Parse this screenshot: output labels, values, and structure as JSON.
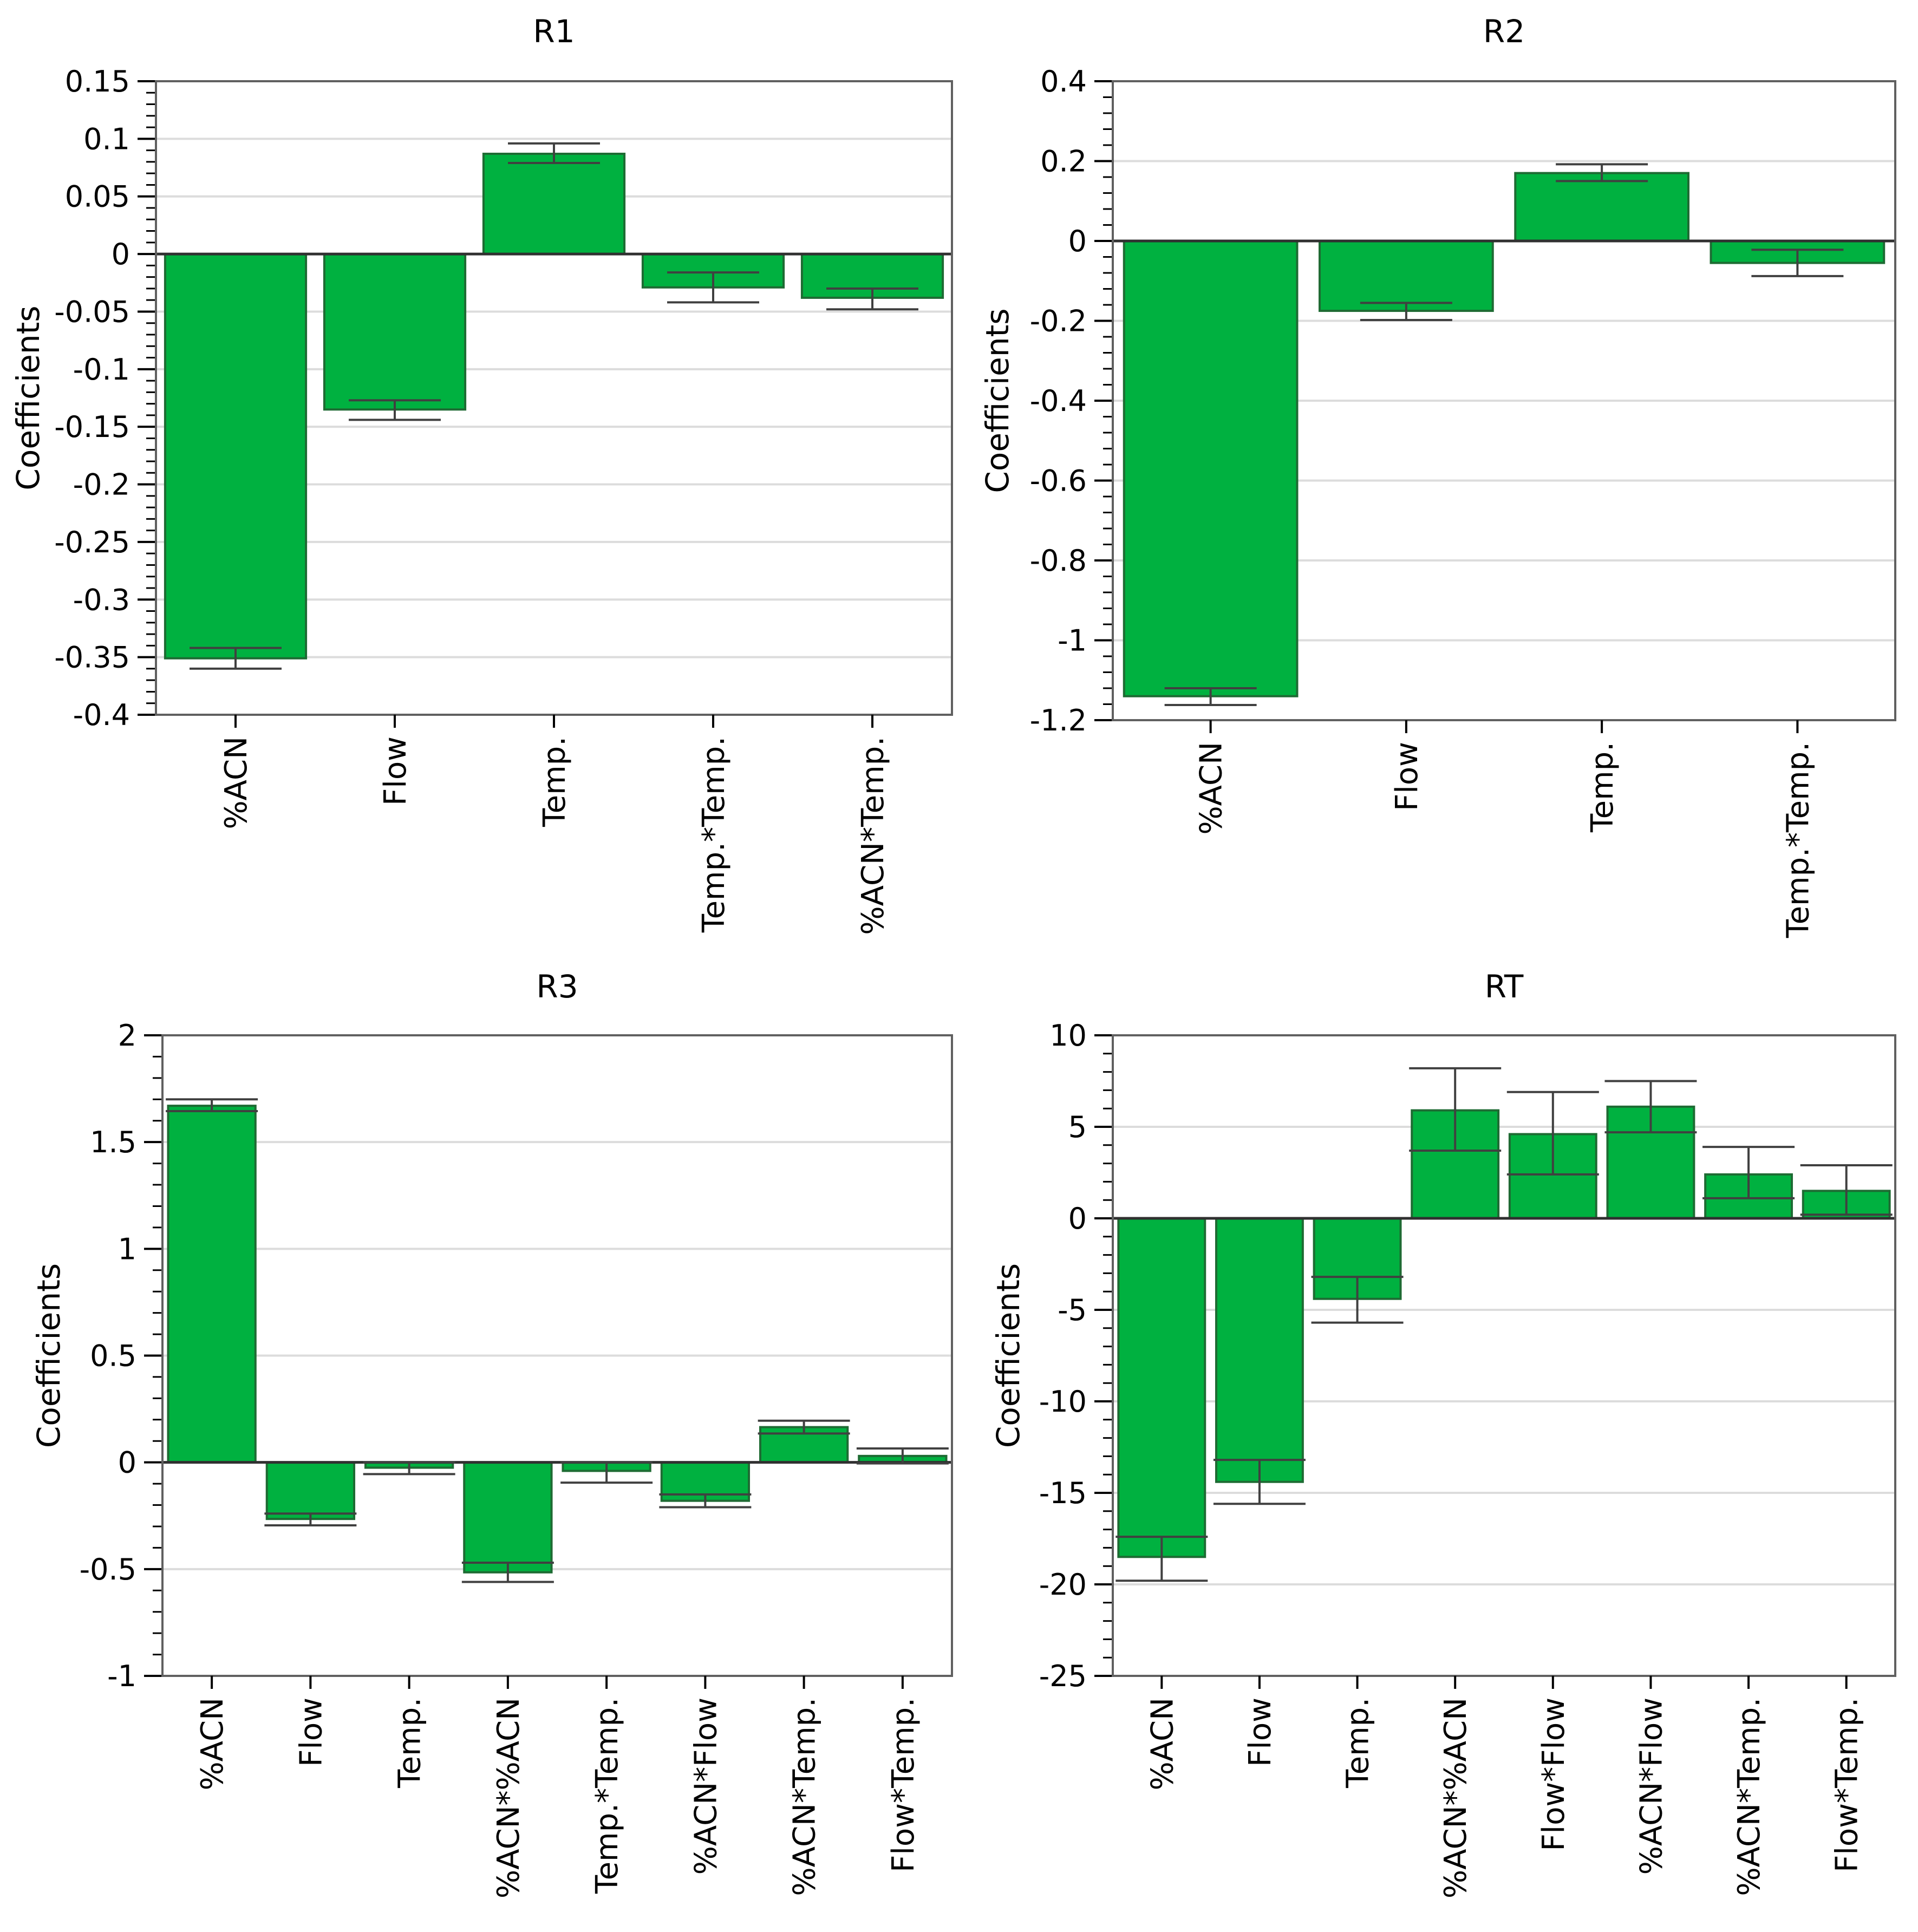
{
  "colors": {
    "bar_fill": "#00B140",
    "bar_stroke": "#1E6B33",
    "grid": "#DCDCDC",
    "axis": "#000000",
    "error_bar": "#404040"
  },
  "chart_data": [
    {
      "type": "bar",
      "title": "R1",
      "ylabel": "Coefficients",
      "xlabel": "",
      "categories": [
        "%ACN",
        "Flow",
        "Temp.",
        "Temp.*Temp.",
        "%ACN*Temp."
      ],
      "values": [
        -0.351,
        -0.135,
        0.087,
        -0.029,
        -0.038
      ],
      "error_low": [
        -0.36,
        -0.144,
        0.079,
        -0.042,
        -0.048
      ],
      "error_high": [
        -0.342,
        -0.127,
        0.096,
        -0.016,
        -0.03
      ],
      "ylim": [
        -0.4,
        0.15
      ],
      "yticks": [
        0.15,
        0.1,
        0.05,
        0,
        -0.05,
        -0.1,
        -0.15,
        -0.2,
        -0.25,
        -0.3,
        -0.35,
        -0.4
      ],
      "ytick_labels": [
        "0.15",
        "0.1",
        "0.05",
        "0",
        "-0.05",
        "-0.1",
        "-0.15",
        "-0.2",
        "-0.25",
        "-0.3",
        "-0.35",
        "-0.4"
      ],
      "grid": true
    },
    {
      "type": "bar",
      "title": "R2",
      "ylabel": "Coefficients",
      "xlabel": "",
      "categories": [
        "%ACN",
        "Flow",
        "Temp.",
        "Temp.*Temp."
      ],
      "values": [
        -1.14,
        -0.175,
        0.17,
        -0.055
      ],
      "error_low": [
        -1.162,
        -0.198,
        0.15,
        -0.088
      ],
      "error_high": [
        -1.12,
        -0.155,
        0.192,
        -0.022
      ],
      "ylim": [
        -1.2,
        0.4
      ],
      "yticks": [
        0.4,
        0.2,
        0,
        -0.2,
        -0.4,
        -0.6,
        -0.8,
        -1,
        -1.2
      ],
      "ytick_labels": [
        "0.4",
        "0.2",
        "0",
        "-0.2",
        "-0.4",
        "-0.6",
        "-0.8",
        "-1",
        "-1.2"
      ],
      "grid": true
    },
    {
      "type": "bar",
      "title": "R3",
      "ylabel": "Coefficients",
      "xlabel": "",
      "categories": [
        "%ACN",
        "Flow",
        "Temp.",
        "%ACN*%ACN",
        "Temp.*Temp.",
        "%ACN*Flow",
        "%ACN*Temp.",
        "Flow*Temp."
      ],
      "values": [
        1.67,
        -0.265,
        -0.025,
        -0.515,
        -0.04,
        -0.18,
        0.165,
        0.03
      ],
      "error_low": [
        1.645,
        -0.295,
        -0.055,
        -0.56,
        -0.095,
        -0.21,
        0.135,
        -0.005
      ],
      "error_high": [
        1.7,
        -0.24,
        0.0,
        -0.47,
        0.0,
        -0.15,
        0.195,
        0.065
      ],
      "ylim": [
        -1,
        2
      ],
      "yticks": [
        2,
        1.5,
        1,
        0.5,
        0,
        -0.5,
        -1
      ],
      "ytick_labels": [
        "2",
        "1.5",
        "1",
        "0.5",
        "0",
        "-0.5",
        "-1"
      ],
      "grid": true
    },
    {
      "type": "bar",
      "title": "RT",
      "ylabel": "Coefficients",
      "xlabel": "",
      "categories": [
        "%ACN",
        "Flow",
        "Temp.",
        "%ACN*%ACN",
        "Flow*Flow",
        "%ACN*Flow",
        "%ACN*Temp.",
        "Flow*Temp."
      ],
      "values": [
        -18.5,
        -14.4,
        -4.4,
        5.9,
        4.6,
        6.1,
        2.4,
        1.5
      ],
      "error_low": [
        -19.8,
        -15.6,
        -5.7,
        3.7,
        2.4,
        4.7,
        1.1,
        0.2
      ],
      "error_high": [
        -17.4,
        -13.2,
        -3.2,
        8.2,
        6.9,
        7.5,
        3.9,
        2.9
      ],
      "ylim": [
        -25,
        10
      ],
      "yticks": [
        10,
        5,
        0,
        -5,
        -10,
        -15,
        -20,
        -25
      ],
      "ytick_labels": [
        "10",
        "5",
        "0",
        "-5",
        "-10",
        "-15",
        "-20",
        "-25"
      ],
      "grid": true
    }
  ]
}
